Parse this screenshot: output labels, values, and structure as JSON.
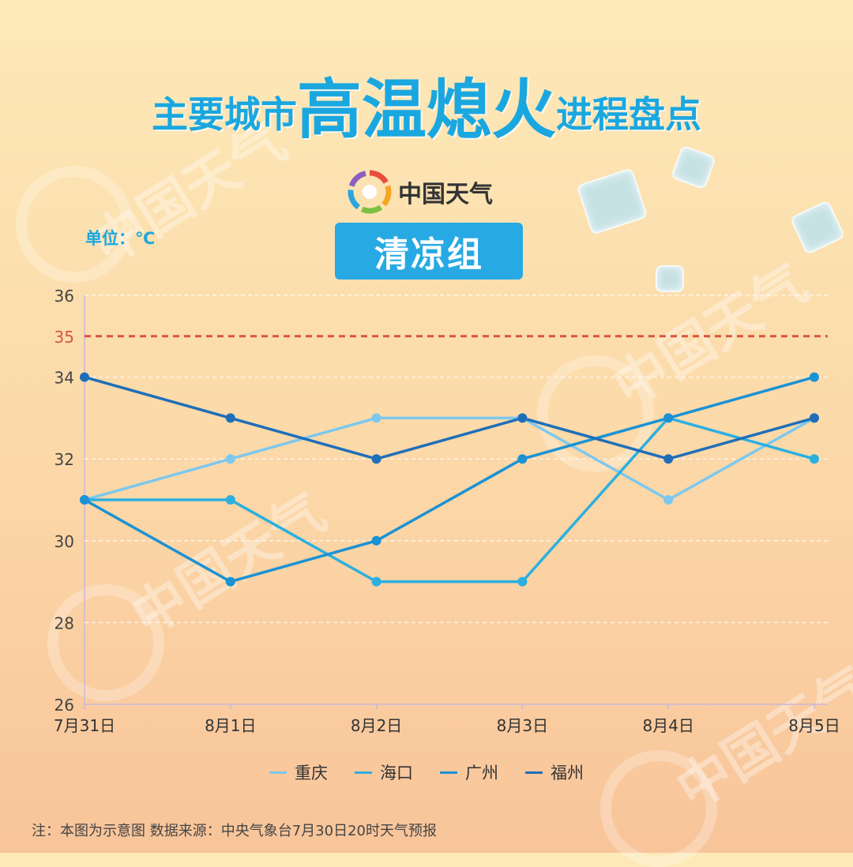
{
  "title": {
    "prefix": "主要城市",
    "highlight": "高温熄火",
    "suffix": "进程盘点"
  },
  "brand": {
    "text": "中国天气"
  },
  "unit_label": "单位：℃",
  "group_label": "清凉组",
  "note": "注：本图为示意图 数据来源：中央气象台7月30日20时天气预报",
  "watermark_text": "中国天气",
  "chart_data": {
    "type": "line",
    "categories": [
      "7月31日",
      "8月1日",
      "8月2日",
      "8月3日",
      "8月4日",
      "8月5日"
    ],
    "ylim": [
      26,
      36
    ],
    "yticks": [
      26,
      28,
      30,
      32,
      34,
      36
    ],
    "threshold": {
      "value": 35,
      "label": "35",
      "color": "#d9543f"
    },
    "series": [
      {
        "name": "重庆",
        "color": "#7cc8ee",
        "values": [
          31,
          32,
          33,
          33,
          31,
          33
        ]
      },
      {
        "name": "海口",
        "color": "#2bb0e0",
        "values": [
          31,
          31,
          29,
          29,
          33,
          32
        ]
      },
      {
        "name": "广州",
        "color": "#1b92d4",
        "values": [
          31,
          29,
          30,
          32,
          33,
          34
        ]
      },
      {
        "name": "福州",
        "color": "#1f6fb8",
        "values": [
          34,
          33,
          32,
          33,
          32,
          33
        ]
      }
    ],
    "legend_position": "bottom",
    "grid": true
  }
}
